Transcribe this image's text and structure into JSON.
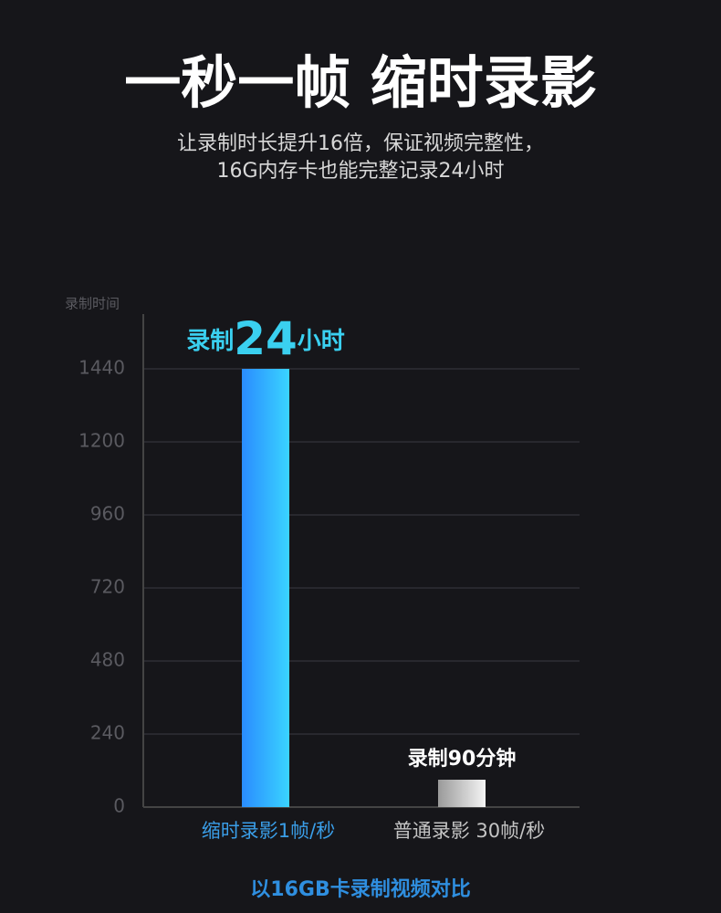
{
  "chart_data": {
    "type": "bar",
    "title": "一秒一帧 缩时录影",
    "subtitle": [
      "让录制时长提升16倍，保证视频完整性，",
      "16G内存卡也能完整记录24小时"
    ],
    "y_label": "录制时间",
    "categories": [
      "缩时录影1帧/秒",
      "普通录影 30帧/秒"
    ],
    "values": [
      1440,
      90
    ],
    "value_labels": [
      "录制24小时",
      "录制90分钟"
    ],
    "colors": [
      "#2a8cff",
      "#9a9a9a"
    ],
    "ylim": [
      0,
      1620
    ],
    "yticks": [
      0,
      240,
      480,
      720,
      960,
      1200,
      1440
    ],
    "grid": true,
    "footnote": "以16GB卡录制视频对比"
  }
}
